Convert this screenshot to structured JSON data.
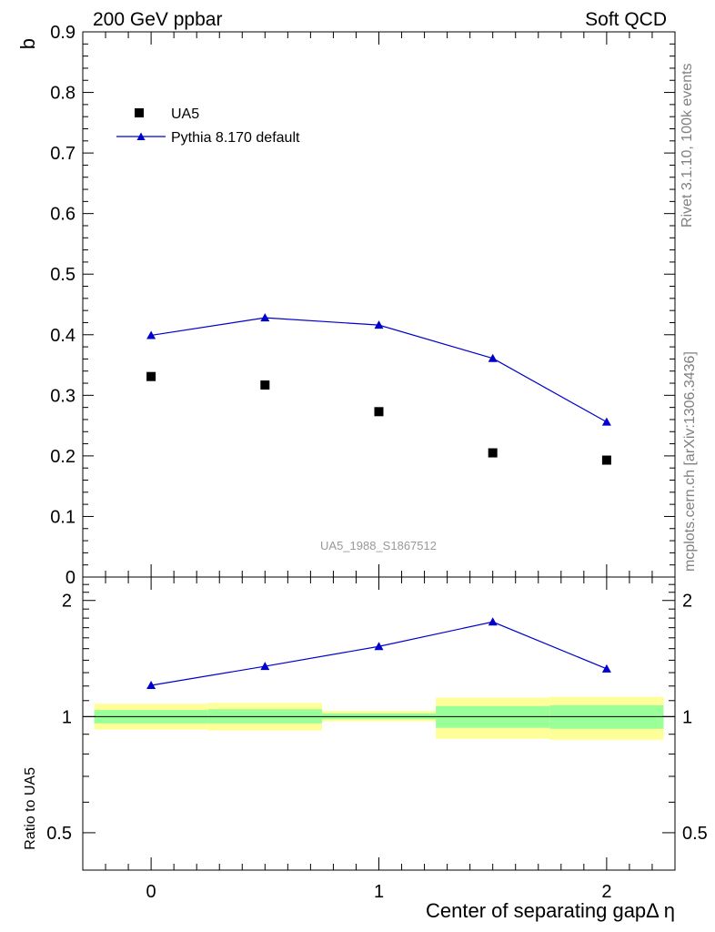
{
  "header": {
    "left": "200 GeV ppbar",
    "right": "Soft QCD"
  },
  "side_text": {
    "top": "Rivet 3.1.10,  100k events",
    "bottom": "mcplots.cern.ch [arXiv:1306.3436]"
  },
  "watermark": "UA5_1988_S1867512",
  "chart_data": {
    "type": "scatter",
    "xlabel": "Center of separating gapΔ η",
    "ylabel": "b",
    "xlim": [
      -0.3,
      2.3
    ],
    "ylim": [
      0,
      0.9
    ],
    "x_ticks": [
      0,
      1,
      2
    ],
    "x_tick_labels": [
      "0",
      "1",
      "2"
    ],
    "y_ticks": [
      0.1,
      0.2,
      0.3,
      0.4,
      0.5,
      0.6,
      0.7,
      0.8,
      0.9
    ],
    "y_tick_labels": [
      "0.1",
      "0.2",
      "0.3",
      "0.4",
      "0.5",
      "0.6",
      "0.7",
      "0.8",
      "0.9"
    ],
    "y_zero_label": "0",
    "series": [
      {
        "name": "UA5",
        "style": "square-markers",
        "color": "#000000",
        "x": [
          0,
          0.5,
          1,
          1.5,
          2
        ],
        "values": [
          0.331,
          0.317,
          0.273,
          0.205,
          0.193
        ]
      },
      {
        "name": "Pythia 8.170 default",
        "style": "line-triangles",
        "color": "#0000cc",
        "x": [
          0,
          0.5,
          1,
          1.5,
          2
        ],
        "values": [
          0.399,
          0.428,
          0.416,
          0.361,
          0.256
        ]
      }
    ],
    "ratio": {
      "ylabel": "Ratio to UA5",
      "scale": "log",
      "ylim": [
        0.4,
        2.3
      ],
      "y_ticks": [
        0.5,
        1,
        2
      ],
      "y_tick_labels": [
        "0.5",
        "1",
        "2"
      ],
      "reference": 1,
      "bands": [
        {
          "x_low": -0.25,
          "x_high": 0.25,
          "yellow_low": 0.925,
          "yellow_high": 1.08,
          "green_low": 0.96,
          "green_high": 1.04
        },
        {
          "x_low": 0.25,
          "x_high": 0.75,
          "yellow_low": 0.92,
          "yellow_high": 1.085,
          "green_low": 0.96,
          "green_high": 1.045
        },
        {
          "x_low": 0.75,
          "x_high": 1.25,
          "yellow_low": 0.972,
          "yellow_high": 1.035,
          "green_low": 0.984,
          "green_high": 1.02
        },
        {
          "x_low": 1.25,
          "x_high": 1.75,
          "yellow_low": 0.876,
          "yellow_high": 1.12,
          "green_low": 0.935,
          "green_high": 1.065
        },
        {
          "x_low": 1.75,
          "x_high": 2.25,
          "yellow_low": 0.87,
          "yellow_high": 1.125,
          "green_low": 0.93,
          "green_high": 1.07
        }
      ],
      "pythia_ratio": {
        "name": "Pythia 8.170 default",
        "color": "#0000cc",
        "x": [
          0,
          0.5,
          1,
          1.5,
          2
        ],
        "values": [
          1.205,
          1.35,
          1.52,
          1.76,
          1.33
        ]
      }
    }
  }
}
